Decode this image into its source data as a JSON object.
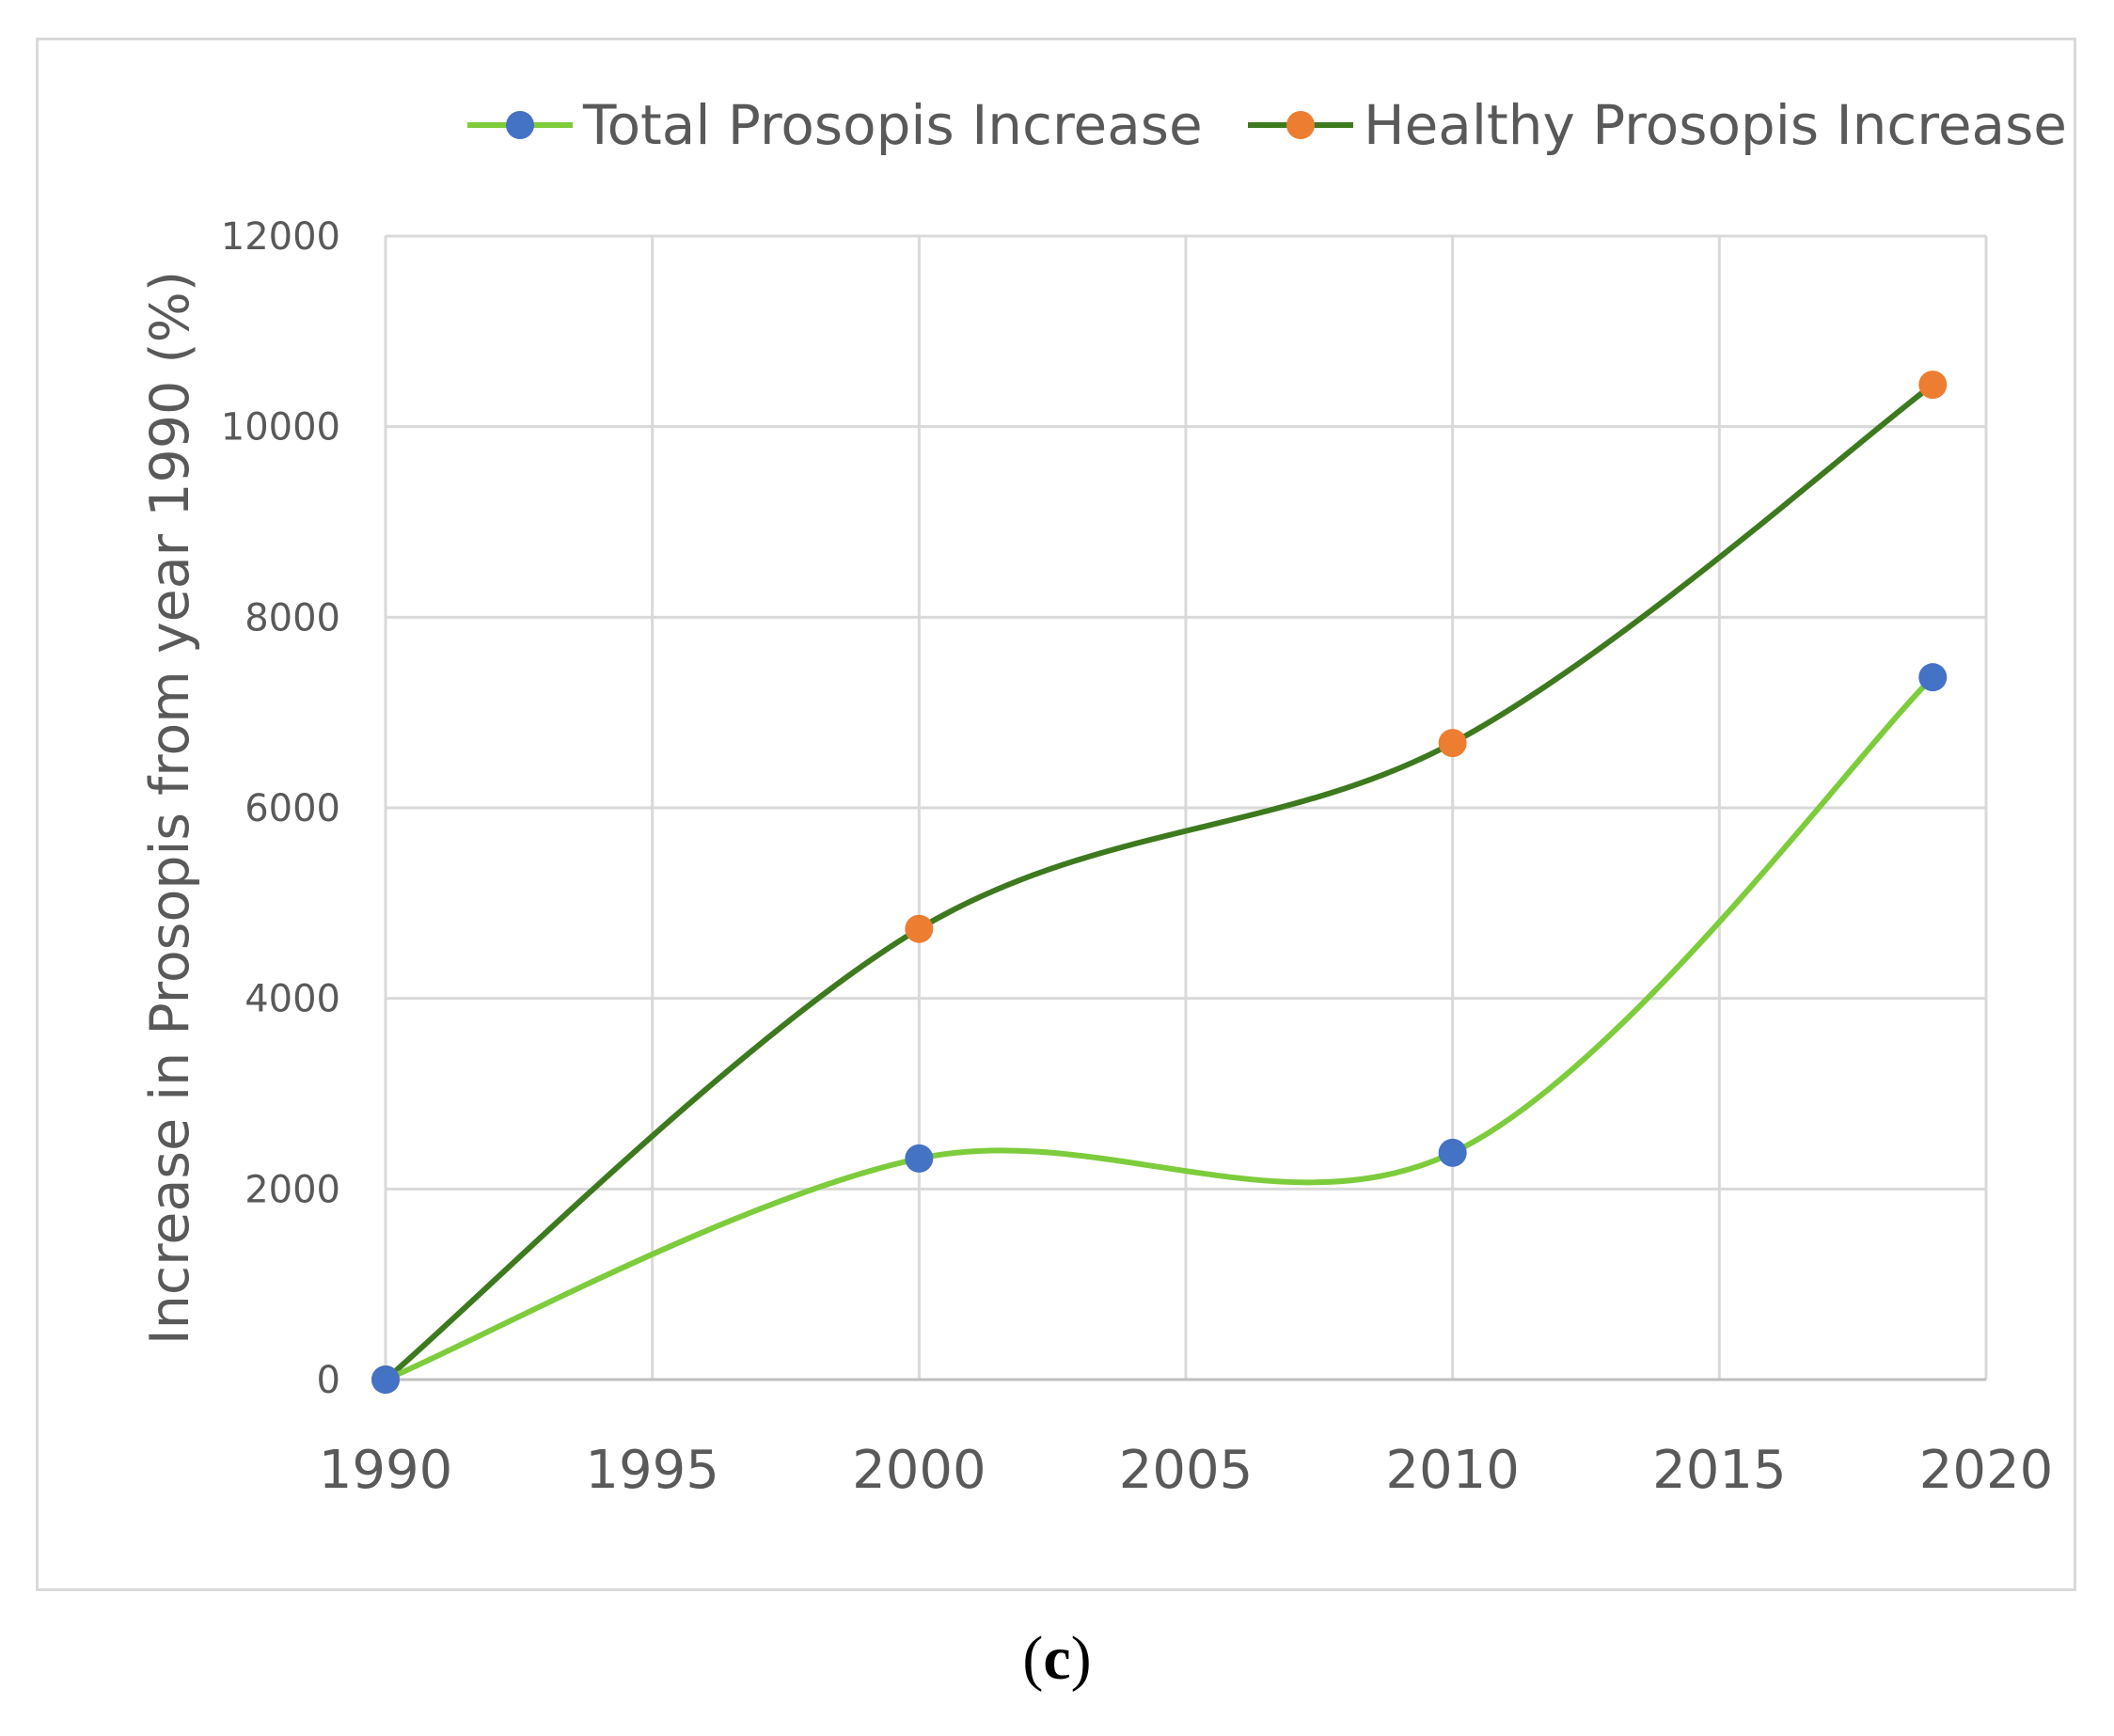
{
  "chart_data": {
    "type": "line",
    "title": "",
    "xlabel": "",
    "ylabel": "Increase in Prosopis from year 1990 (%)",
    "xlim": [
      1990,
      2020
    ],
    "ylim": [
      0,
      12000
    ],
    "xticks": [
      1990,
      1995,
      2000,
      2005,
      2010,
      2015,
      2020
    ],
    "yticks": [
      0,
      2000,
      4000,
      6000,
      8000,
      10000,
      12000
    ],
    "grid": true,
    "smooth": true,
    "legend_position": "top",
    "series": [
      {
        "name": "Total Prosopis Increase",
        "line_color": "#7dcc3c",
        "marker_color": "#4472c4",
        "x": [
          1990,
          2000,
          2010,
          2019
        ],
        "values": [
          0,
          2320,
          2380,
          7370
        ]
      },
      {
        "name": "Healthy Prosopis Increase",
        "line_color": "#3d7a1e",
        "marker_color": "#ed7d31",
        "x": [
          1990,
          2000,
          2010,
          2019
        ],
        "values": [
          0,
          4730,
          6680,
          10440
        ]
      }
    ]
  },
  "caption": {
    "open": "(",
    "letter": "c",
    "close": ")"
  }
}
